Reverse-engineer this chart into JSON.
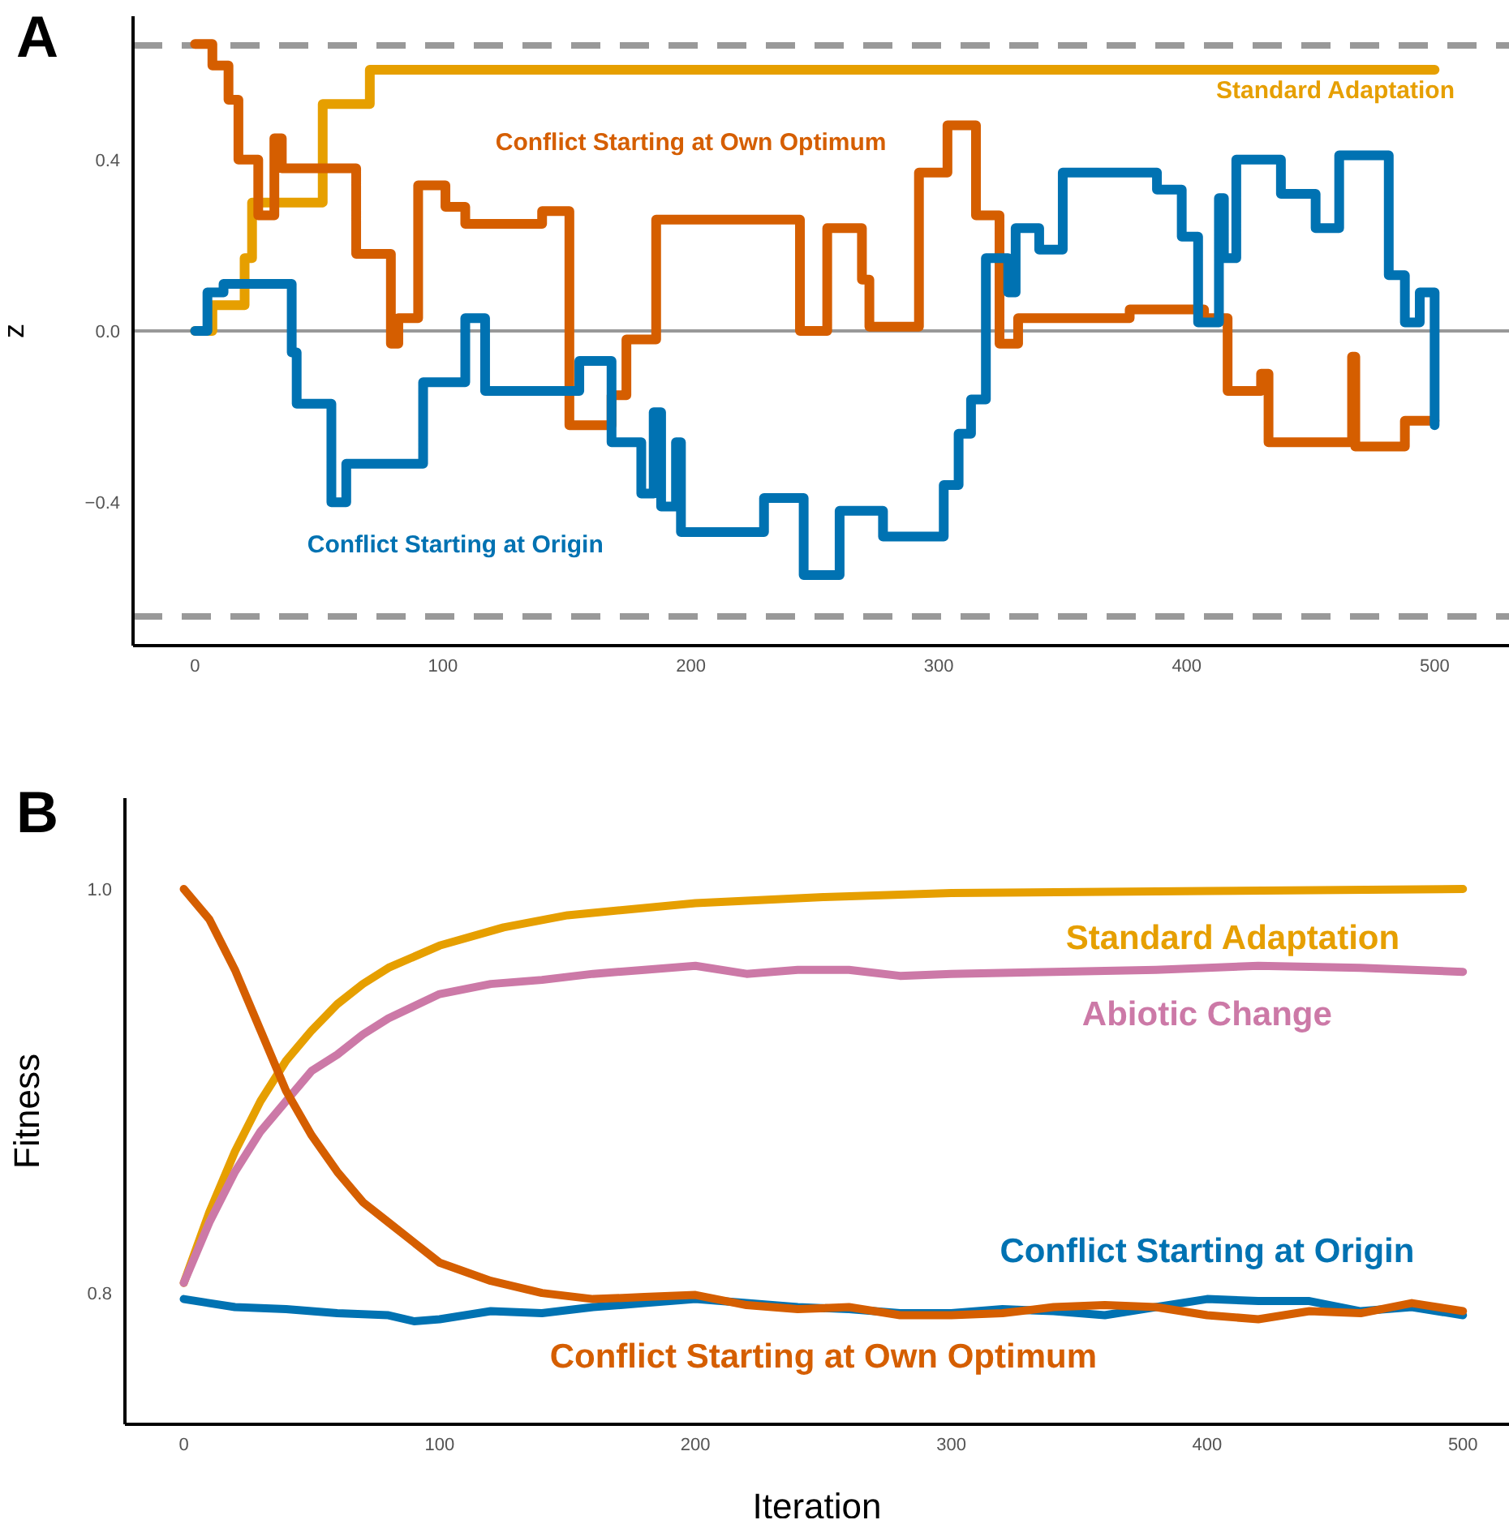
{
  "chart_data": [
    {
      "type": "step",
      "title": "A",
      "ylabel": "z",
      "xlim": [
        -25,
        530
      ],
      "ylim": [
        -0.735,
        0.735
      ],
      "xticks": [
        0,
        100,
        200,
        300,
        400,
        500
      ],
      "yticks": [
        {
          "value": -0.4,
          "label": "−0.4"
        },
        {
          "value": 0,
          "label": "0.0"
        },
        {
          "value": 0.4,
          "label": "0.4"
        }
      ],
      "ref_lines": [
        {
          "axis": "y",
          "value": 0,
          "color": "#999999",
          "line_style": "solid"
        },
        {
          "axis": "y",
          "value": 0.667,
          "color": "#999999",
          "line_style": "dashed"
        },
        {
          "axis": "y",
          "value": -0.667,
          "color": "#999999",
          "line_style": "dashed"
        }
      ],
      "series": [
        {
          "name": "Standard Adaptation",
          "color": "#e69f00",
          "x": [
            0,
            7,
            20,
            23,
            51.5,
            70.5,
            500
          ],
          "values": [
            0,
            0.06,
            0.17,
            0.3,
            0.53,
            0.61,
            0.61
          ]
        },
        {
          "name": "Conflict Starting at Own Optimum",
          "color": "#d55e00",
          "x": [
            0,
            7,
            13.5,
            17.5,
            25.5,
            32,
            35,
            65,
            79,
            82,
            90,
            101,
            109,
            140,
            151,
            168,
            174,
            186,
            244,
            255,
            269,
            272,
            292,
            303.5,
            315,
            324.5,
            332,
            377,
            407,
            416.5,
            430,
            433,
            466.7,
            468,
            488,
            500
          ],
          "values": [
            0.67,
            0.62,
            0.54,
            0.4,
            0.27,
            0.45,
            0.38,
            0.18,
            -0.03,
            0.03,
            0.34,
            0.29,
            0.25,
            0.28,
            -0.22,
            -0.15,
            -0.02,
            0.26,
            0,
            0.24,
            0.12,
            0.01,
            0.37,
            0.48,
            0.27,
            -0.03,
            0.03,
            0.05,
            0.03,
            -0.14,
            -0.1,
            -0.26,
            -0.06,
            -0.27,
            -0.21,
            -0.21
          ]
        },
        {
          "name": "Conflict Starting at Origin",
          "color": "#0072b2",
          "x": [
            0,
            5,
            11.5,
            39,
            41,
            55,
            61,
            92,
            109,
            117,
            155,
            168,
            180,
            185,
            188,
            194,
            196,
            229.5,
            245.5,
            260,
            277.5,
            302,
            308,
            313,
            319,
            328,
            331,
            340.5,
            350,
            388,
            398,
            404.6,
            413,
            415,
            420,
            438,
            452,
            461.5,
            481.5,
            488,
            494,
            500
          ],
          "values": [
            0,
            0.09,
            0.11,
            -0.05,
            -0.17,
            -0.4,
            -0.31,
            -0.12,
            0.03,
            -0.14,
            -0.07,
            -0.26,
            -0.38,
            -0.19,
            -0.41,
            -0.26,
            -0.47,
            -0.39,
            -0.57,
            -0.42,
            -0.48,
            -0.36,
            -0.24,
            -0.16,
            0.17,
            0.09,
            0.24,
            0.19,
            0.37,
            0.33,
            0.22,
            0.02,
            0.31,
            0.17,
            0.4,
            0.32,
            0.24,
            0.41,
            0.13,
            0.02,
            0.09,
            -0.22
          ]
        }
      ]
    },
    {
      "type": "line",
      "title": "B",
      "xlabel": "Iteration",
      "ylabel": "Fitness",
      "xlim": [
        -23,
        518
      ],
      "ylim": [
        0.735,
        1.045
      ],
      "xticks": [
        0,
        100,
        200,
        300,
        400,
        500
      ],
      "yticks": [
        {
          "value": 0.8,
          "label": "0.8"
        },
        {
          "value": 1,
          "label": "1.0"
        }
      ],
      "series": [
        {
          "name": "Standard Adaptation",
          "color": "#e69f00",
          "x": [
            0,
            10,
            20,
            30,
            40,
            50,
            60,
            70,
            80,
            100,
            125,
            150,
            200,
            250,
            300,
            400,
            500
          ],
          "values": [
            0.805,
            0.84,
            0.87,
            0.895,
            0.915,
            0.93,
            0.943,
            0.953,
            0.961,
            0.972,
            0.981,
            0.987,
            0.993,
            0.996,
            0.998,
            0.999,
            1.0
          ]
        },
        {
          "name": "Abiotic Change",
          "color": "#cc79a7",
          "x": [
            0,
            10,
            20,
            30,
            40,
            50,
            60,
            70,
            80,
            90,
            100,
            120,
            140,
            160,
            180,
            200,
            220,
            240,
            260,
            280,
            300,
            340,
            380,
            420,
            460,
            500
          ],
          "values": [
            0.805,
            0.835,
            0.86,
            0.88,
            0.895,
            0.91,
            0.918,
            0.928,
            0.936,
            0.942,
            0.948,
            0.953,
            0.955,
            0.958,
            0.96,
            0.962,
            0.958,
            0.96,
            0.96,
            0.957,
            0.958,
            0.959,
            0.96,
            0.962,
            0.961,
            0.959
          ]
        },
        {
          "name": "Conflict Starting at Origin",
          "color": "#0072b2",
          "x": [
            0,
            20,
            40,
            60,
            80,
            90,
            100,
            120,
            140,
            160,
            180,
            200,
            220,
            240,
            260,
            280,
            300,
            320,
            340,
            360,
            380,
            400,
            420,
            440,
            460,
            480,
            500
          ],
          "values": [
            0.797,
            0.793,
            0.792,
            0.79,
            0.789,
            0.786,
            0.787,
            0.791,
            0.79,
            0.793,
            0.795,
            0.797,
            0.795,
            0.793,
            0.792,
            0.79,
            0.79,
            0.792,
            0.791,
            0.789,
            0.793,
            0.797,
            0.796,
            0.796,
            0.791,
            0.793,
            0.789
          ]
        },
        {
          "name": "Conflict Starting at Own Optimum",
          "color": "#d55e00",
          "x": [
            0,
            10,
            20,
            30,
            40,
            50,
            60,
            70,
            80,
            90,
            100,
            120,
            140,
            160,
            180,
            200,
            220,
            240,
            260,
            280,
            300,
            320,
            340,
            360,
            380,
            400,
            420,
            440,
            460,
            480,
            500
          ],
          "values": [
            1.0,
            0.985,
            0.96,
            0.93,
            0.9,
            0.878,
            0.86,
            0.845,
            0.835,
            0.825,
            0.815,
            0.806,
            0.8,
            0.797,
            0.798,
            0.799,
            0.794,
            0.792,
            0.793,
            0.789,
            0.789,
            0.79,
            0.793,
            0.794,
            0.793,
            0.789,
            0.787,
            0.791,
            0.79,
            0.795,
            0.791
          ]
        }
      ]
    }
  ]
}
